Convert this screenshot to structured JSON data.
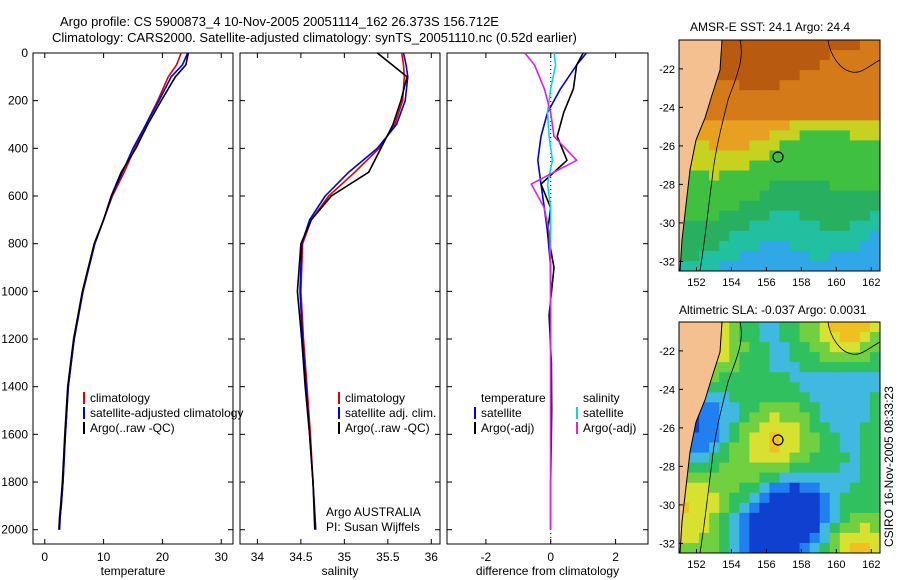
{
  "header": {
    "title_line1": "Argo profile: CS 5900873_4 10-Nov-2005 20051114_162 26.373S 156.712E",
    "title_line2": "Climatology: CARS2000. Satellite-adjusted climatology: synTS_20051110.nc (0.52d earlier)"
  },
  "side_label": "CSIRO 16-Nov-2005 08:33:23",
  "chart_data": [
    {
      "type": "line",
      "id": "temperature",
      "xlabel": "temperature",
      "ylabel": "",
      "xlim": [
        -2,
        32
      ],
      "ylim": [
        0,
        2060
      ],
      "xticks": [
        0,
        10,
        20,
        30
      ],
      "yticks": [
        0,
        200,
        400,
        600,
        800,
        1000,
        1200,
        1400,
        1600,
        1800,
        2000
      ],
      "y_reversed": true,
      "legend": {
        "position": "lower-middle",
        "entries": [
          {
            "label": "climatology",
            "color": "#e00000"
          },
          {
            "label": "satellite-adjusted climatology",
            "color": "#0000e0"
          },
          {
            "label": "Argo(..raw -QC)",
            "color": "#000000"
          }
        ]
      },
      "series": [
        {
          "name": "climatology",
          "color": "#e00000",
          "x": [
            23.2,
            22.4,
            21.0,
            19.2,
            17.2,
            15.3,
            13.5,
            11.5,
            10.0,
            8.5,
            6.5,
            5.0,
            4.0,
            3.5,
            3.1,
            2.8,
            2.6,
            2.5
          ],
          "y": [
            0,
            50,
            100,
            200,
            300,
            400,
            500,
            600,
            700,
            800,
            1000,
            1200,
            1400,
            1600,
            1800,
            1900,
            1950,
            2000
          ]
        },
        {
          "name": "satellite-adjusted climatology",
          "color": "#0000e0",
          "x": [
            24.3,
            23.4,
            21.5,
            19.4,
            17.2,
            15.0,
            13.2,
            11.4,
            10.0,
            8.5,
            6.5,
            5.0,
            4.0,
            3.5,
            3.1,
            2.8,
            2.6,
            2.5
          ],
          "y": [
            0,
            50,
            100,
            200,
            300,
            400,
            500,
            600,
            700,
            800,
            1000,
            1200,
            1400,
            1600,
            1800,
            1900,
            1950,
            2000
          ]
        },
        {
          "name": "Argo(..raw -QC)",
          "color": "#000000",
          "x": [
            24.4,
            24.0,
            22.2,
            19.8,
            17.5,
            15.5,
            13.0,
            11.3,
            10.0,
            8.4,
            6.4,
            4.9,
            3.9,
            3.4,
            3.0,
            2.7,
            2.5,
            2.4
          ],
          "y": [
            0,
            50,
            100,
            200,
            300,
            400,
            500,
            600,
            700,
            800,
            1000,
            1200,
            1400,
            1600,
            1800,
            1900,
            1950,
            2000
          ]
        }
      ]
    },
    {
      "type": "line",
      "id": "salinity",
      "xlabel": "salinity",
      "xlim": [
        33.8,
        36.1
      ],
      "ylim": [
        0,
        2060
      ],
      "xticks": [
        34,
        34.5,
        35,
        35.5,
        36
      ],
      "y_reversed": true,
      "legend": {
        "position": "lower-right",
        "entries": [
          {
            "label": "climatology",
            "color": "#e00000"
          },
          {
            "label": "satellite adj. clim.",
            "color": "#0000e0"
          },
          {
            "label": "Argo(..raw -QC)",
            "color": "#000000"
          }
        ]
      },
      "annotation_line1": "Argo AUSTRALIA",
      "annotation_line2": "PI: Susan Wijffels",
      "series": [
        {
          "name": "climatology",
          "color": "#e00000",
          "x": [
            35.66,
            35.68,
            35.69,
            35.67,
            35.58,
            35.4,
            35.12,
            34.82,
            34.62,
            34.52,
            34.5,
            34.53,
            34.57,
            34.61,
            34.64,
            34.67
          ],
          "y": [
            0,
            50,
            100,
            200,
            300,
            400,
            500,
            600,
            700,
            800,
            1000,
            1200,
            1400,
            1600,
            1800,
            2000
          ]
        },
        {
          "name": "satellite adj. clim.",
          "color": "#0000e0",
          "x": [
            35.68,
            35.71,
            35.73,
            35.7,
            35.6,
            35.38,
            35.05,
            34.78,
            34.6,
            34.51,
            34.49,
            34.52,
            34.56,
            34.6,
            34.64,
            34.67
          ],
          "y": [
            0,
            50,
            100,
            200,
            300,
            400,
            500,
            600,
            700,
            800,
            1000,
            1200,
            1400,
            1600,
            1800,
            2000
          ]
        },
        {
          "name": "Argo(..raw -QC)",
          "color": "#000000",
          "x": [
            35.38,
            35.55,
            35.72,
            35.65,
            35.56,
            35.42,
            35.28,
            34.85,
            34.62,
            34.5,
            34.46,
            34.51,
            34.55,
            34.6,
            34.64,
            34.66
          ],
          "y": [
            0,
            50,
            100,
            200,
            300,
            400,
            500,
            600,
            700,
            800,
            1000,
            1200,
            1400,
            1600,
            1800,
            2000
          ]
        }
      ]
    },
    {
      "type": "line",
      "id": "difference",
      "xlabel": "difference from climatology",
      "xlim": [
        -3.2,
        3.0
      ],
      "ylim": [
        0,
        2060
      ],
      "xticks": [
        -2,
        0,
        2
      ],
      "zero_line": "dotted",
      "y_reversed": true,
      "legend": {
        "position": "lower",
        "temp_heading": "temperature",
        "sal_heading": "salinity",
        "entries": [
          {
            "label": "satellite",
            "color": "#0000e0"
          },
          {
            "label": "Argo(-adj)",
            "color": "#000000"
          },
          {
            "label": "satellite",
            "color": "#00d8e8"
          },
          {
            "label": "Argo(-adj)",
            "color": "#e020e0"
          }
        ]
      },
      "series": [
        {
          "name": "temperature satellite",
          "color": "#0000e0",
          "x": [
            1.1,
            0.8,
            0.3,
            -0.1,
            -0.3,
            -0.4,
            -0.3,
            -0.2,
            -0.1,
            0.0,
            0.0,
            0.0,
            0.0,
            0.0,
            0.0
          ],
          "y": [
            0,
            50,
            150,
            250,
            350,
            450,
            550,
            650,
            750,
            900,
            1100,
            1300,
            1500,
            1800,
            2000
          ]
        },
        {
          "name": "temperature Argo(-adj)",
          "color": "#000000",
          "x": [
            1.0,
            0.8,
            0.7,
            0.4,
            0.2,
            0.5,
            -0.3,
            0.0,
            -0.1,
            0.1,
            -0.05,
            0.02,
            0.03,
            0.0,
            0.0
          ],
          "y": [
            0,
            50,
            150,
            250,
            350,
            450,
            550,
            650,
            750,
            900,
            1100,
            1300,
            1500,
            1800,
            2000
          ]
        },
        {
          "name": "salinity satellite",
          "color": "#00d8e8",
          "x": [
            0.1,
            0.15,
            0.0,
            -0.1,
            -0.05,
            0.05,
            -0.1,
            0.0,
            0.0,
            -0.02,
            0.0,
            0.0,
            0.0,
            0.0,
            0.0
          ],
          "y": [
            0,
            50,
            150,
            250,
            350,
            450,
            550,
            650,
            750,
            900,
            1100,
            1300,
            1500,
            1800,
            2000
          ]
        },
        {
          "name": "salinity Argo(-adj)",
          "color": "#e020e0",
          "x": [
            -0.8,
            -0.5,
            -0.2,
            0.0,
            0.1,
            0.8,
            -0.6,
            -0.2,
            -0.05,
            0.0,
            0.0,
            0.0,
            0.0,
            0.0,
            0.0
          ],
          "y": [
            0,
            50,
            150,
            250,
            350,
            450,
            550,
            650,
            750,
            900,
            1100,
            1300,
            1500,
            1800,
            2000
          ]
        }
      ]
    },
    {
      "type": "heatmap",
      "id": "sst-map",
      "title": "AMSR-E SST: 24.1 Argo: 24.4",
      "xlim": [
        151,
        162.5
      ],
      "ylim": [
        -32.5,
        -20.5
      ],
      "xticks": [
        152,
        154,
        156,
        158,
        160,
        162
      ],
      "yticks": [
        -22,
        -24,
        -26,
        -28,
        -30,
        -32
      ],
      "profile_marker": [
        156.7,
        -26.4
      ]
    },
    {
      "type": "heatmap",
      "id": "sla-map",
      "title": "Altimetric SLA: -0.037 Argo: 0.0031",
      "xlim": [
        151,
        162.5
      ],
      "ylim": [
        -32.5,
        -20.5
      ],
      "xticks": [
        152,
        154,
        156,
        158,
        160,
        162
      ],
      "yticks": [
        -22,
        -24,
        -26,
        -28,
        -30,
        -32
      ],
      "profile_marker": [
        156.7,
        -26.4
      ]
    }
  ]
}
